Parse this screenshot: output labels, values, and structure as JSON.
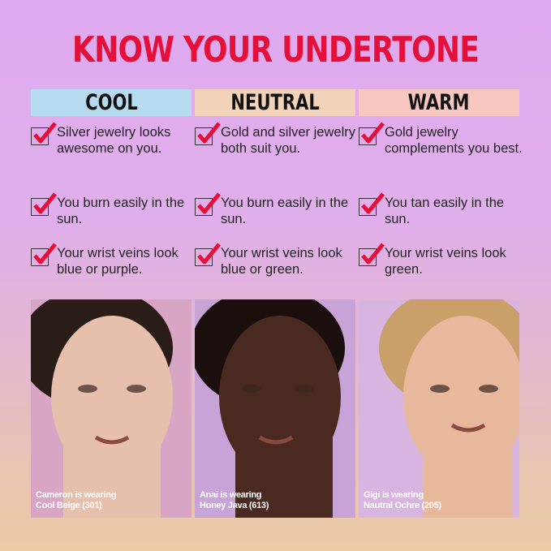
{
  "title": "KNOW YOUR UNDERTONE",
  "columns": [
    {
      "label": "COOL",
      "color": "#b6dbee",
      "items": [
        "Silver jewelry looks awesome on you.",
        "You burn easily in the sun.",
        "Your wrist veins look blue or purple."
      ],
      "caption": [
        "Cameron is wearing",
        "Cool Beige (301)"
      ],
      "skin": "#e6c0ac",
      "hair": "#2a1d18",
      "bg": "#d9a5c5"
    },
    {
      "label": "NEUTRAL",
      "color": "#f2d2b8",
      "items": [
        "Gold and silver jewelry both suit you.",
        "You burn easily in the sun.",
        "Your wrist veins look blue or green."
      ],
      "caption": [
        "Anai is wearing",
        "Honey Java (613)"
      ],
      "skin": "#4a2a20",
      "hair": "#1a0f0c",
      "bg": "#c7a3d8"
    },
    {
      "label": "WARM",
      "color": "#f6c6bf",
      "items": [
        "Gold jewelry complements you best.",
        "You tan easily in the sun.",
        "Your wrist veins look green."
      ],
      "caption": [
        "Gigi is wearing",
        "Nautral Ochre (205)"
      ],
      "skin": "#e8b89c",
      "hair": "#c9a06a",
      "bg": "#d8b5e0"
    }
  ],
  "check_color": "#e5103a",
  "icons": [
    "checkbox-checked-icon"
  ]
}
